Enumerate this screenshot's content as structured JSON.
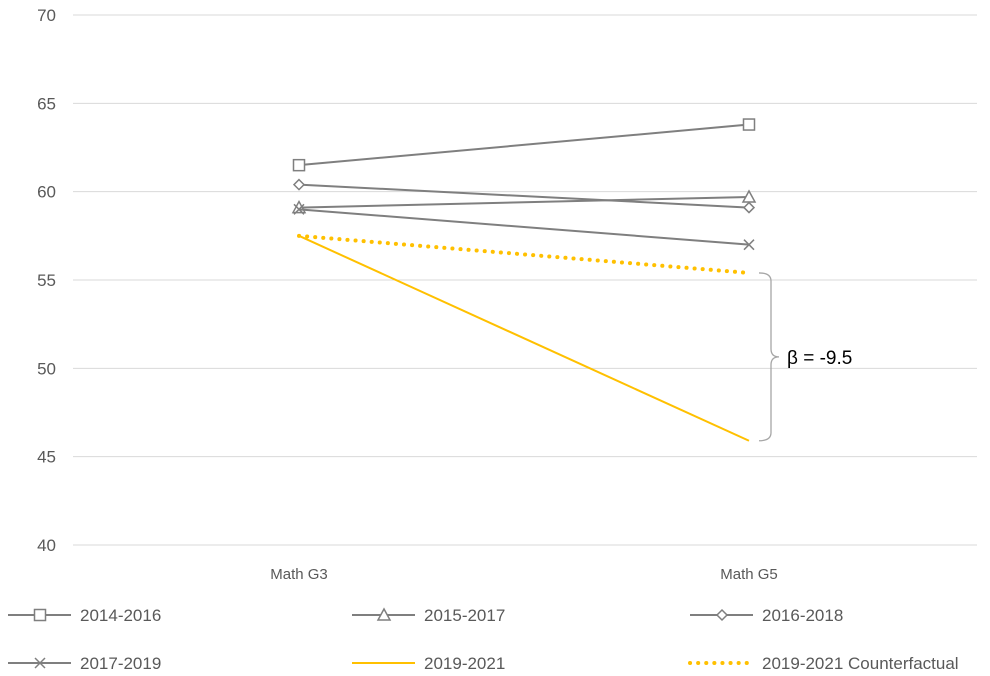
{
  "chart_data": {
    "type": "line",
    "title": "",
    "xlabel": "",
    "ylabel": "",
    "categories": [
      "Math G3",
      "Math G5"
    ],
    "ylim": [
      40,
      70
    ],
    "yticks": [
      40,
      45,
      50,
      55,
      60,
      65,
      70
    ],
    "grid": true,
    "legend_position": "bottom",
    "series": [
      {
        "name": "2014-2016",
        "values": [
          61.5,
          63.8
        ],
        "color": "#7f7f7f",
        "marker": "square",
        "style": "solid"
      },
      {
        "name": "2015-2017",
        "values": [
          59.1,
          59.7
        ],
        "color": "#7f7f7f",
        "marker": "triangle",
        "style": "solid"
      },
      {
        "name": "2016-2018",
        "values": [
          60.4,
          59.1
        ],
        "color": "#7f7f7f",
        "marker": "diamond",
        "style": "solid"
      },
      {
        "name": "2017-2019",
        "values": [
          59.0,
          57.0
        ],
        "color": "#7f7f7f",
        "marker": "x",
        "style": "solid"
      },
      {
        "name": "2019-2021",
        "values": [
          57.5,
          45.9
        ],
        "color": "#ffc000",
        "marker": "none",
        "style": "solid"
      },
      {
        "name": "2019-2021 Counterfactual",
        "values": [
          57.5,
          55.4
        ],
        "color": "#ffc000",
        "marker": "none",
        "style": "dotted"
      }
    ],
    "annotations": [
      {
        "text": "β = -9.5",
        "category": "Math G5",
        "from": 55.4,
        "to": 45.9
      }
    ]
  }
}
